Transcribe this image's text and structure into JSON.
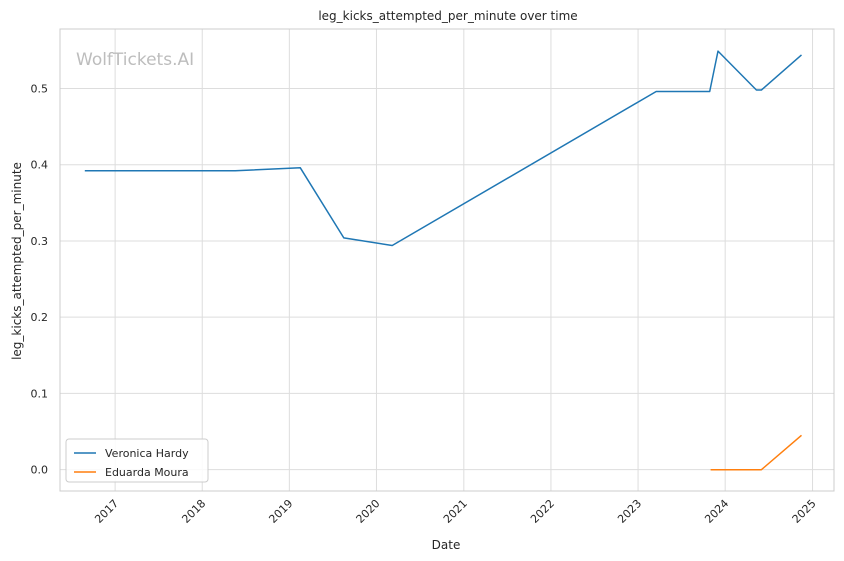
{
  "watermark": "WolfTickets.AI",
  "chart_data": {
    "type": "line",
    "title": "leg_kicks_attempted_per_minute over time",
    "xlabel": "Date",
    "ylabel": "leg_kicks_attempted_per_minute",
    "x_ticks": [
      "2017",
      "2018",
      "2019",
      "2020",
      "2021",
      "2022",
      "2023",
      "2024",
      "2025"
    ],
    "y_ticks": [
      "0.0",
      "0.1",
      "0.2",
      "0.3",
      "0.4",
      "0.5"
    ],
    "xlim": [
      "2016-05-15",
      "2025-04-01"
    ],
    "ylim": [
      -0.028,
      0.578
    ],
    "grid": true,
    "legend_position": "lower-left",
    "series": [
      {
        "name": "Veronica Hardy",
        "color": "#1f77b4",
        "points": [
          {
            "x": "2016-08-27",
            "y": 0.392
          },
          {
            "x": "2018-05-19",
            "y": 0.392
          },
          {
            "x": "2019-02-16",
            "y": 0.396
          },
          {
            "x": "2019-08-17",
            "y": 0.304
          },
          {
            "x": "2020-03-07",
            "y": 0.294
          },
          {
            "x": "2023-03-18",
            "y": 0.496
          },
          {
            "x": "2023-10-28",
            "y": 0.496
          },
          {
            "x": "2023-12-02",
            "y": 0.549
          },
          {
            "x": "2024-05-11",
            "y": 0.498
          },
          {
            "x": "2024-06-01",
            "y": 0.498
          },
          {
            "x": "2024-11-16",
            "y": 0.544
          }
        ]
      },
      {
        "name": "Eduarda Moura",
        "color": "#ff7f0e",
        "points": [
          {
            "x": "2023-11-01",
            "y": 0.0
          },
          {
            "x": "2024-06-01",
            "y": 0.0
          },
          {
            "x": "2024-11-16",
            "y": 0.045
          }
        ]
      }
    ]
  }
}
